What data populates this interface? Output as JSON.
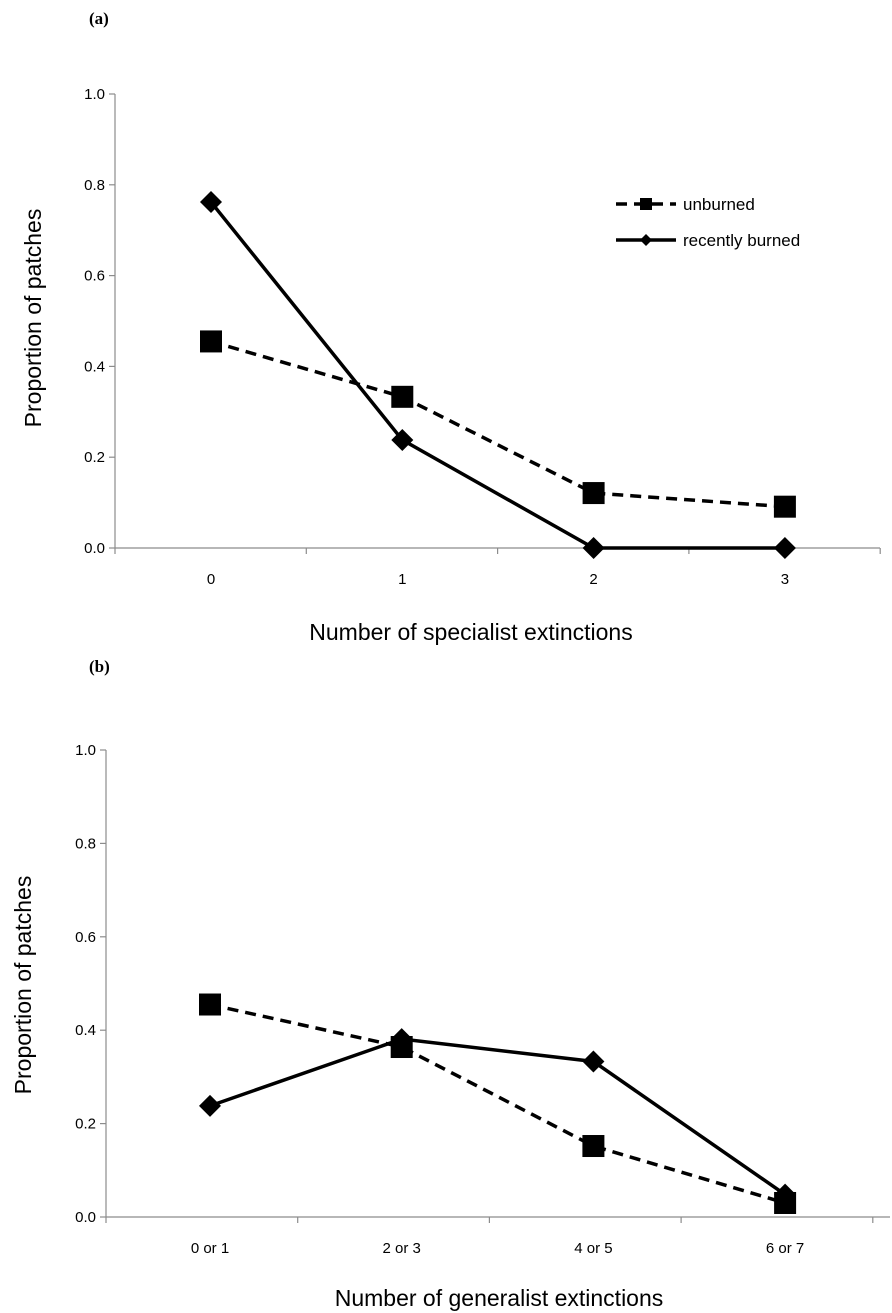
{
  "chart_data": [
    {
      "panel_label": "(a)",
      "type": "line",
      "categories": [
        "0",
        "1",
        "2",
        "3"
      ],
      "xlabel": "Number of specialist extinctions",
      "ylabel": "Proportion of patches",
      "ylim": [
        0,
        1.0
      ],
      "yticks": [
        "0.0",
        "0.2",
        "0.4",
        "0.6",
        "0.8",
        "1.0"
      ],
      "grid": false,
      "legend_position": "top-right",
      "series": [
        {
          "name": "unburned",
          "style": "dashed",
          "marker": "square",
          "values": [
            0.455,
            0.333,
            0.121,
            0.091
          ]
        },
        {
          "name": "recently burned",
          "style": "solid",
          "marker": "diamond",
          "values": [
            0.762,
            0.238,
            0.0,
            0.0
          ]
        }
      ]
    },
    {
      "panel_label": "(b)",
      "type": "line",
      "categories": [
        "0 or 1",
        "2 or 3",
        "4 or 5",
        "6 or 7"
      ],
      "xlabel": "Number of generalist extinctions",
      "ylabel": "Proportion of patches",
      "ylim": [
        0,
        1.0
      ],
      "yticks": [
        "0.0",
        "0.2",
        "0.4",
        "0.6",
        "0.8",
        "1.0"
      ],
      "grid": false,
      "series": [
        {
          "name": "unburned",
          "style": "dashed",
          "marker": "square",
          "values": [
            0.455,
            0.364,
            0.152,
            0.03
          ]
        },
        {
          "name": "recently burned",
          "style": "solid",
          "marker": "diamond",
          "values": [
            0.238,
            0.381,
            0.333,
            0.048
          ]
        }
      ]
    }
  ]
}
